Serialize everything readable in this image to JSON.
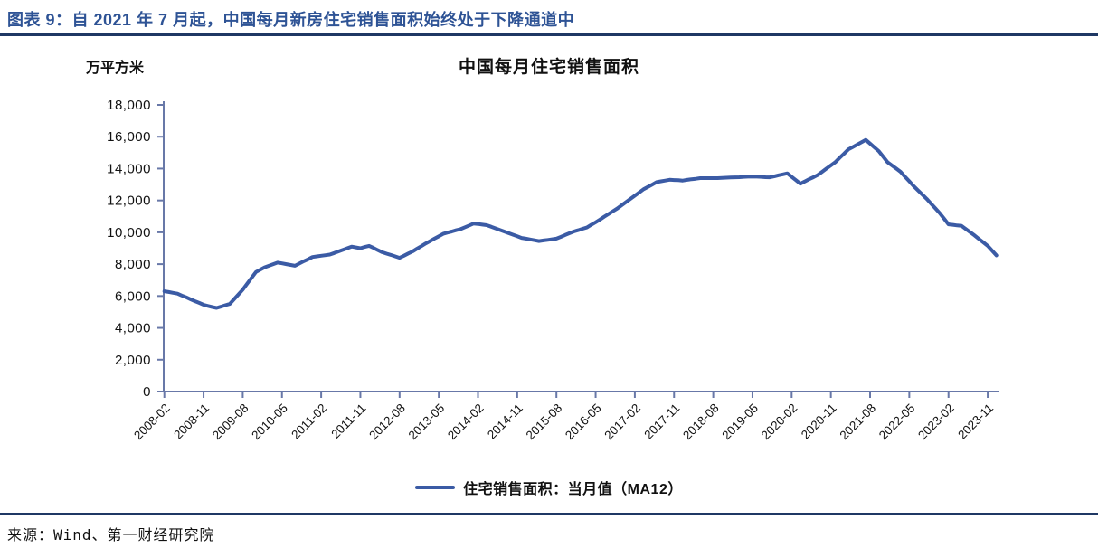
{
  "figure": {
    "title": "图表 9：自 2021 年 7 月起，中国每月新房住宅销售面积始终处于下降通道中",
    "source": "来源：Wind、第一财经研究院"
  },
  "chart": {
    "title": "中国每月住宅销售面积",
    "unit_label": "万平方米",
    "legend_label": "住宅销售面积：当月值（MA12）",
    "colors": {
      "series": "#3B5BA5",
      "axis": "#6878A8",
      "header_blue": "#2E5395",
      "rule_navy": "#1F3864",
      "text": "#111111"
    }
  },
  "chart_data": {
    "type": "line",
    "title": "中国每月住宅销售面积",
    "ylabel": "万平方米",
    "series_name": "住宅销售面积：当月值（MA12）",
    "frequency": "monthly",
    "x_start": "2008-02",
    "x_end": "2024-01",
    "n_points": 192,
    "x_tick_every_months": 9,
    "x_tick_labels": [
      "2008-02",
      "2008-11",
      "2009-08",
      "2010-05",
      "2011-02",
      "2011-11",
      "2012-08",
      "2013-05",
      "2014-02",
      "2014-11",
      "2015-08",
      "2016-05",
      "2017-02",
      "2017-11",
      "2018-08",
      "2019-05",
      "2020-02",
      "2020-11",
      "2021-08",
      "2022-05",
      "2023-02",
      "2023-11"
    ],
    "y_ticks": [
      0,
      2000,
      4000,
      6000,
      8000,
      10000,
      12000,
      14000,
      16000,
      18000
    ],
    "ylim": [
      0,
      18000
    ],
    "grid": false,
    "legend_position": "bottom",
    "values": [
      6300,
      6250,
      6200,
      6150,
      6030,
      5920,
      5800,
      5680,
      5570,
      5450,
      5380,
      5310,
      5250,
      5330,
      5420,
      5500,
      5800,
      6100,
      6400,
      6770,
      7130,
      7500,
      7650,
      7800,
      7900,
      8000,
      8100,
      8050,
      8000,
      7950,
      7900,
      8040,
      8180,
      8310,
      8450,
      8490,
      8530,
      8560,
      8600,
      8700,
      8800,
      8900,
      9000,
      9100,
      9050,
      9000,
      9080,
      9150,
      9020,
      8880,
      8750,
      8660,
      8580,
      8490,
      8400,
      8530,
      8670,
      8800,
      8970,
      9130,
      9300,
      9450,
      9600,
      9750,
      9900,
      9980,
      10050,
      10130,
      10200,
      10320,
      10430,
      10550,
      10520,
      10480,
      10450,
      10350,
      10250,
      10150,
      10050,
      9950,
      9850,
      9750,
      9650,
      9600,
      9550,
      9500,
      9450,
      9490,
      9520,
      9560,
      9600,
      9710,
      9830,
      9940,
      10050,
      10130,
      10220,
      10300,
      10470,
      10630,
      10800,
      10980,
      11150,
      11330,
      11500,
      11700,
      11900,
      12100,
      12300,
      12500,
      12700,
      12850,
      13000,
      13150,
      13200,
      13250,
      13300,
      13280,
      13270,
      13250,
      13290,
      13330,
      13360,
      13400,
      13400,
      13400,
      13400,
      13400,
      13410,
      13430,
      13440,
      13450,
      13460,
      13480,
      13490,
      13500,
      13490,
      13480,
      13460,
      13450,
      13510,
      13580,
      13640,
      13700,
      13480,
      13270,
      13050,
      13190,
      13330,
      13460,
      13600,
      13800,
      14000,
      14200,
      14400,
      14670,
      14930,
      15200,
      15350,
      15500,
      15650,
      15800,
      15570,
      15330,
      15100,
      14750,
      14400,
      14200,
      14000,
      13800,
      13500,
      13200,
      12900,
      12630,
      12370,
      12100,
      11800,
      11500,
      11200,
      10850,
      10500,
      10470,
      10430,
      10400,
      10200,
      10000,
      9800,
      9580,
      9370,
      9150,
      8850,
      8550
    ]
  }
}
